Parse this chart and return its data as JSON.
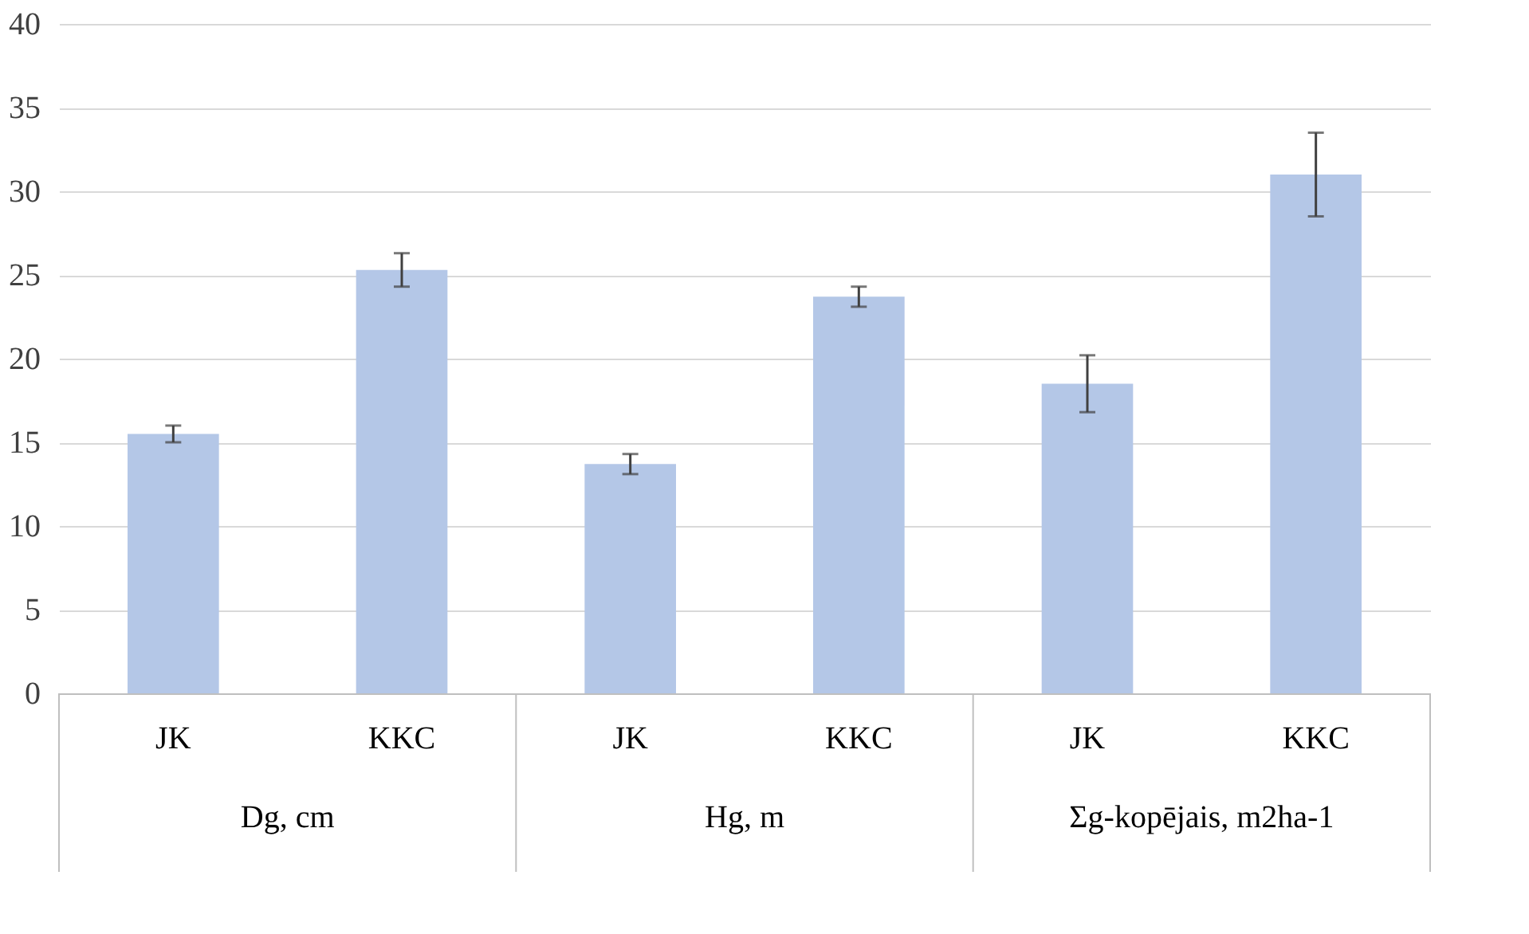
{
  "chart_data": {
    "type": "bar",
    "categories": [
      "JK",
      "KKC",
      "JK",
      "KKC",
      "JK",
      "KKC"
    ],
    "values": [
      15.5,
      25.3,
      13.7,
      23.7,
      18.5,
      31.0
    ],
    "errors": [
      0.5,
      1.0,
      0.6,
      0.6,
      1.7,
      2.5
    ],
    "color": "#b4c7e7",
    "ylim": [
      0,
      40
    ],
    "yticks": [
      0,
      5,
      10,
      15,
      20,
      25,
      30,
      35,
      40
    ],
    "grid": "y",
    "annotations": [
      "Dg, cm",
      "Hg, m",
      "Σg-kopējais, m2ha-1"
    ]
  }
}
